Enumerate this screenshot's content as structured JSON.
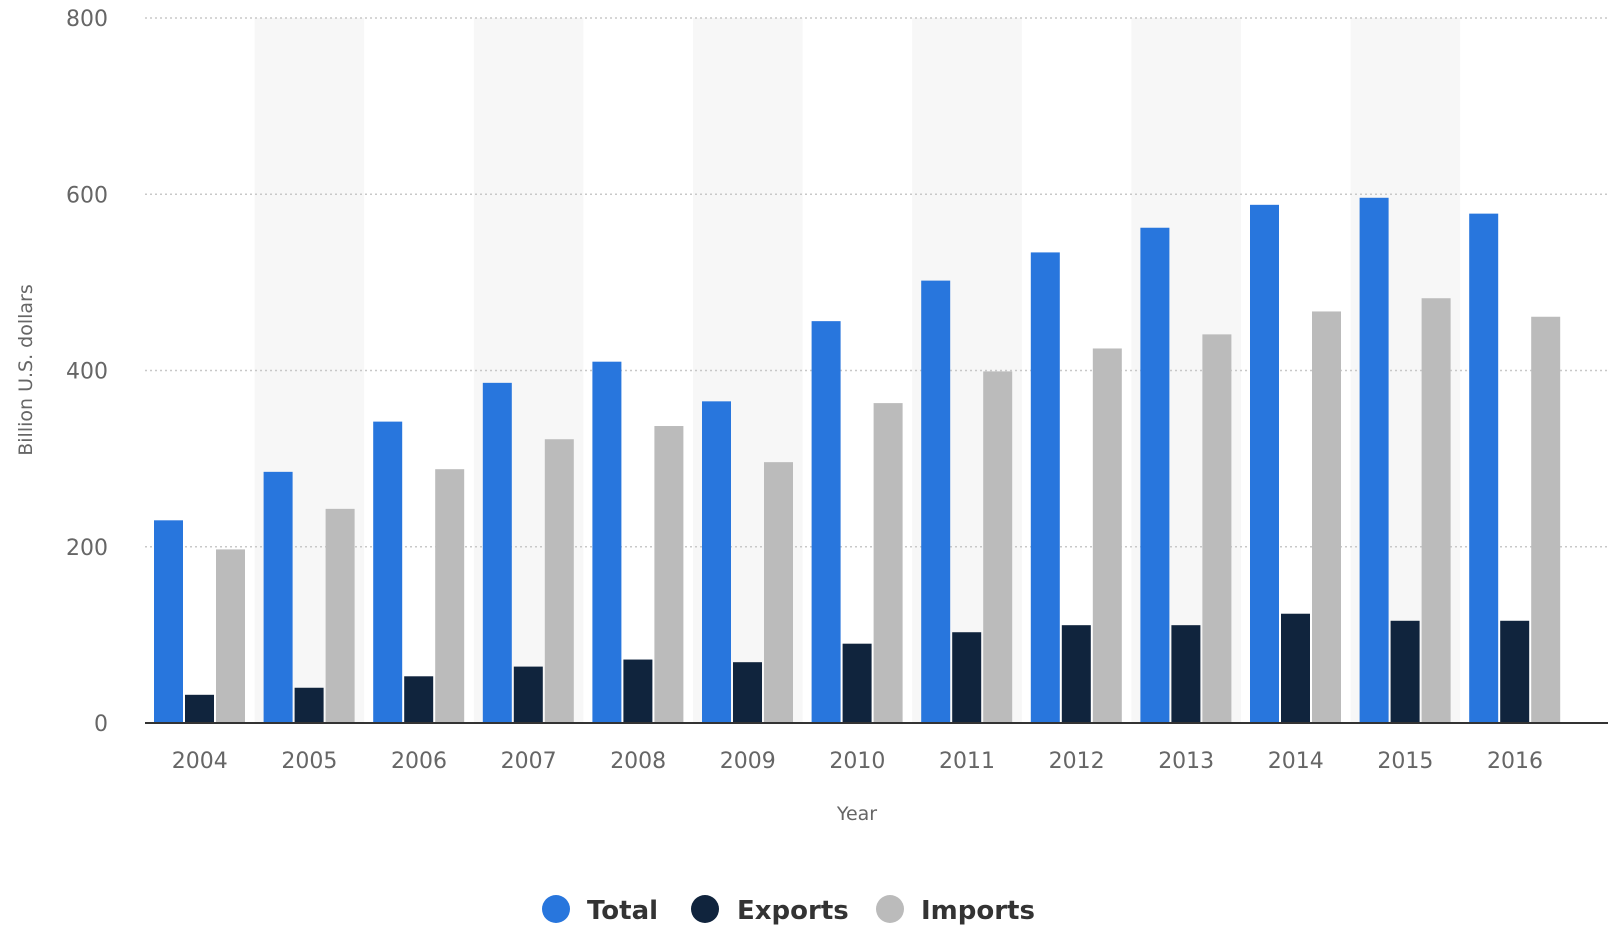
{
  "chart_data": {
    "type": "bar",
    "xlabel": "Year",
    "ylabel": "Billion U.S. dollars",
    "ylim": [
      0,
      800
    ],
    "yticks": [
      0,
      200,
      400,
      600,
      800
    ],
    "grid": true,
    "legend_position": "bottom",
    "categories": [
      "2004",
      "2005",
      "2006",
      "2007",
      "2008",
      "2009",
      "2010",
      "2011",
      "2012",
      "2013",
      "2014",
      "2015",
      "2016"
    ],
    "series": [
      {
        "name": "Total",
        "color": "#2876dd",
        "values": [
          230,
          285,
          342,
          386,
          410,
          365,
          456,
          502,
          534,
          562,
          588,
          596,
          578
        ]
      },
      {
        "name": "Exports",
        "color": "#10243d",
        "values": [
          32,
          40,
          53,
          64,
          72,
          69,
          90,
          103,
          111,
          111,
          124,
          116,
          116
        ]
      },
      {
        "name": "Imports",
        "color": "#bbbbbb",
        "values": [
          197,
          243,
          288,
          322,
          337,
          296,
          363,
          399,
          425,
          441,
          467,
          482,
          461
        ]
      }
    ]
  }
}
